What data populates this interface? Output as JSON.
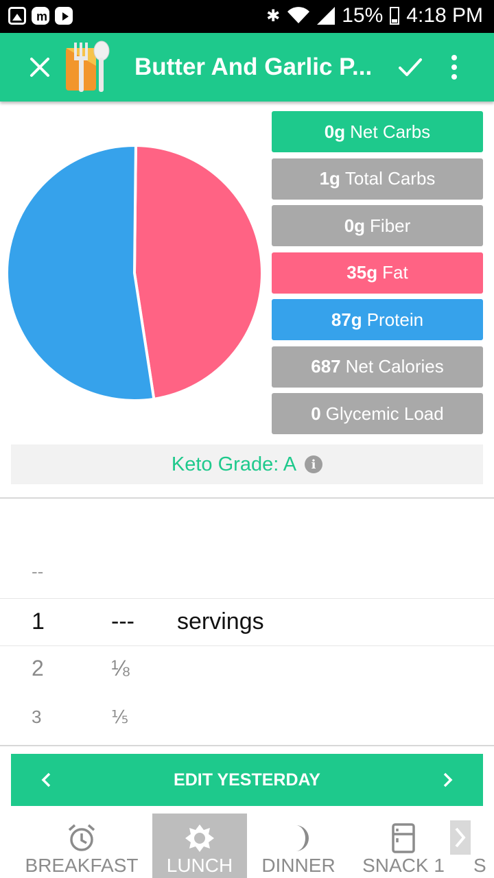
{
  "status_bar": {
    "battery": "15%",
    "time": "4:18 PM"
  },
  "app_bar": {
    "title": "Butter And Garlic P...",
    "icons": [
      "close-icon",
      "check-icon",
      "more-icon"
    ]
  },
  "pie_chart": {
    "slices": [
      {
        "label": "Fat",
        "percent": 47.4,
        "color": "#ff6384"
      },
      {
        "label": "Protein",
        "percent": 52.6,
        "color": "#36a2eb"
      }
    ]
  },
  "macros": [
    {
      "value": "0g",
      "label": "Net Carbs",
      "color": "green"
    },
    {
      "value": "1g",
      "label": "Total Carbs",
      "color": "gray"
    },
    {
      "value": "0g",
      "label": "Fiber",
      "color": "gray"
    },
    {
      "value": "35g",
      "label": "Fat",
      "color": "pink"
    },
    {
      "value": "87g",
      "label": "Protein",
      "color": "blue"
    },
    {
      "value": "687",
      "label": "Net Calories",
      "color": "gray"
    },
    {
      "value": "0",
      "label": "Glycemic Load",
      "color": "gray"
    }
  ],
  "keto_grade": {
    "text": "Keto Grade: A",
    "info_symbol": "i"
  },
  "picker": {
    "placeholder": "--",
    "selected": {
      "quantity": "1",
      "fraction": "---",
      "unit": "servings"
    },
    "rows": [
      {
        "quantity": "2",
        "fraction": "⅛"
      },
      {
        "quantity": "3",
        "fraction": "⅕"
      }
    ]
  },
  "edit_button": {
    "label": "EDIT YESTERDAY"
  },
  "meal_tabs": [
    {
      "label": "BREAKFAST",
      "icon": "alarm-clock-icon",
      "active": false
    },
    {
      "label": "LUNCH",
      "icon": "sun-icon",
      "active": true
    },
    {
      "label": "DINNER",
      "icon": "moon-icon",
      "active": false
    },
    {
      "label": "SNACK 1",
      "icon": "fridge-icon",
      "active": false
    },
    {
      "label": "S",
      "icon": "",
      "active": false
    }
  ],
  "colors": {
    "accent": "#1ec98c",
    "fat": "#ff6384",
    "protein": "#36a2eb",
    "neutral": "#a9a9a9"
  }
}
